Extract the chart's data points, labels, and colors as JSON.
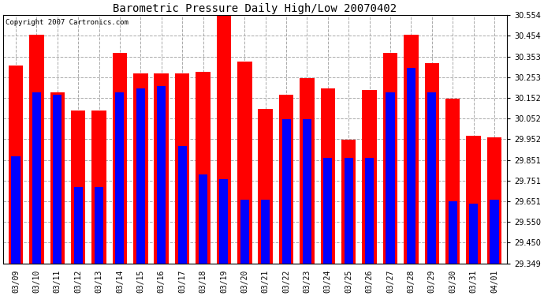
{
  "title": "Barometric Pressure Daily High/Low 20070402",
  "copyright": "Copyright 2007 Cartronics.com",
  "dates": [
    "03/09",
    "03/10",
    "03/11",
    "03/12",
    "03/13",
    "03/14",
    "03/15",
    "03/16",
    "03/17",
    "03/18",
    "03/19",
    "03/20",
    "03/21",
    "03/22",
    "03/23",
    "03/24",
    "03/25",
    "03/26",
    "03/27",
    "03/28",
    "03/29",
    "03/30",
    "03/31",
    "04/01"
  ],
  "highs": [
    30.31,
    30.46,
    30.18,
    30.09,
    30.09,
    30.37,
    30.27,
    30.27,
    30.27,
    30.28,
    30.55,
    30.33,
    30.1,
    30.17,
    30.25,
    30.2,
    29.95,
    30.19,
    30.37,
    30.46,
    30.32,
    30.15,
    29.97,
    29.96
  ],
  "lows": [
    29.87,
    30.18,
    30.17,
    29.72,
    29.72,
    30.18,
    30.2,
    30.21,
    29.92,
    29.78,
    29.76,
    29.66,
    29.66,
    30.05,
    30.05,
    29.86,
    29.86,
    29.86,
    30.18,
    30.3,
    30.18,
    29.65,
    29.64,
    29.66
  ],
  "bar_color_high": "#ff0000",
  "bar_color_low": "#0000ff",
  "bg_color": "#ffffff",
  "plot_bg_color": "#ffffff",
  "grid_color": "#aaaaaa",
  "ymin": 29.349,
  "ymax": 30.554,
  "yticks": [
    29.349,
    29.45,
    29.55,
    29.651,
    29.751,
    29.851,
    29.952,
    30.052,
    30.152,
    30.253,
    30.353,
    30.454,
    30.554
  ],
  "title_fontsize": 10,
  "tick_fontsize": 7,
  "copyright_fontsize": 6.5,
  "bar_width": 0.35,
  "fig_width": 6.9,
  "fig_height": 3.75,
  "dpi": 100
}
